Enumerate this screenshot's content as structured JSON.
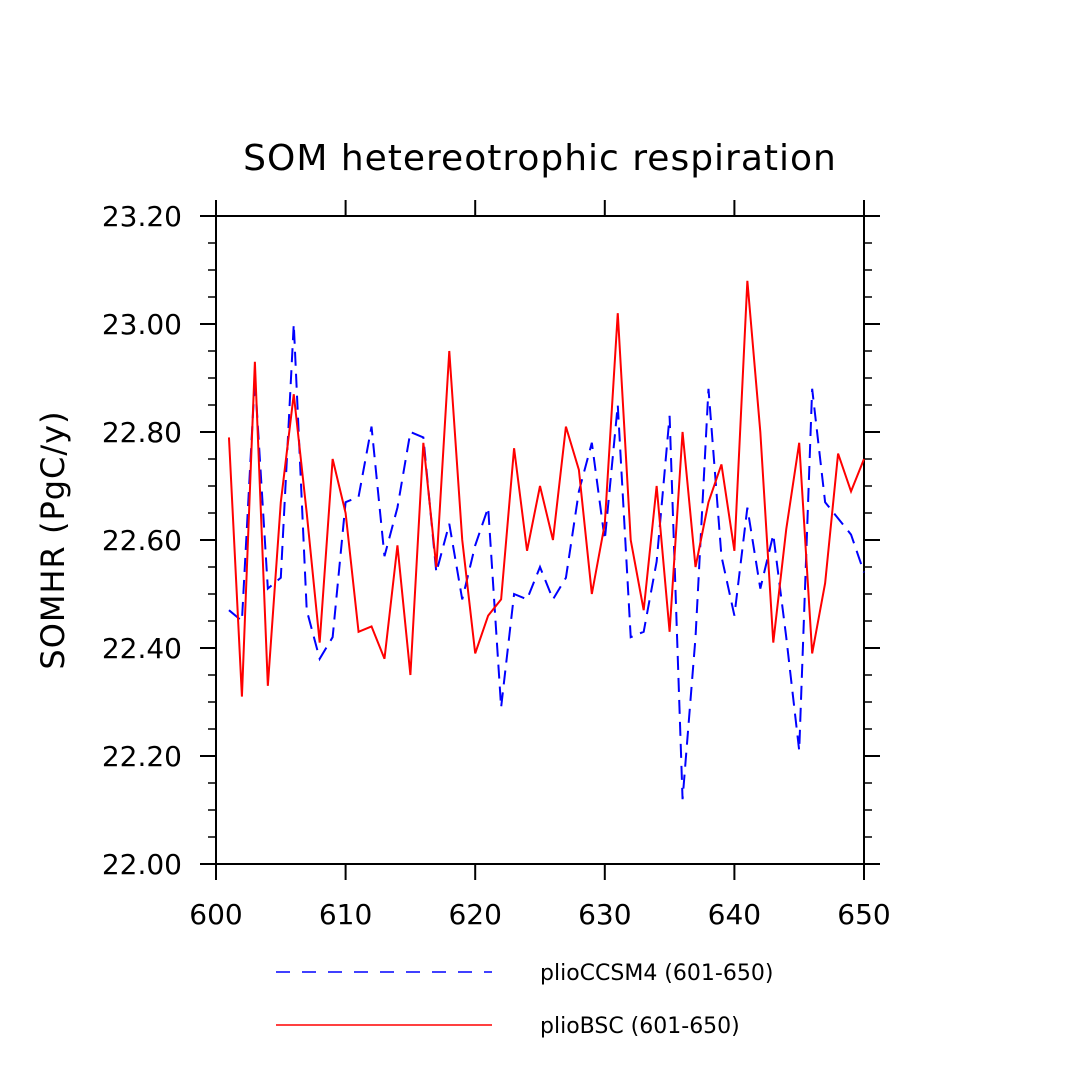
{
  "chart_data": {
    "type": "line",
    "title": "SOM hetereotrophic respiration",
    "xlabel": "",
    "ylabel": "SOMHR  (PgC/y)",
    "xlim": [
      600,
      650
    ],
    "ylim": [
      22.0,
      23.2
    ],
    "x_ticks": [
      600,
      610,
      620,
      630,
      640,
      650
    ],
    "x_tick_labels": [
      "600",
      "610",
      "620",
      "630",
      "640",
      "650"
    ],
    "y_ticks": [
      22.0,
      22.2,
      22.4,
      22.6,
      22.8,
      23.0,
      23.2
    ],
    "y_tick_labels": [
      "22.00",
      "22.20",
      "22.40",
      "22.60",
      "22.80",
      "23.00",
      "23.20"
    ],
    "grid": false,
    "legend_position": "bottom",
    "x": [
      601,
      602,
      603,
      604,
      605,
      606,
      607,
      608,
      609,
      610,
      611,
      612,
      613,
      614,
      615,
      616,
      617,
      618,
      619,
      620,
      621,
      622,
      623,
      624,
      625,
      626,
      627,
      628,
      629,
      630,
      631,
      632,
      633,
      634,
      635,
      636,
      637,
      638,
      639,
      640,
      641,
      642,
      643,
      644,
      645,
      646,
      647,
      648,
      649,
      650
    ],
    "series": [
      {
        "name": "plioCCSM4 (601-650)",
        "color": "#0000ff",
        "style": "dashed",
        "values": [
          22.47,
          22.45,
          22.9,
          22.51,
          22.53,
          23.0,
          22.47,
          22.38,
          22.42,
          22.67,
          22.68,
          22.81,
          22.57,
          22.66,
          22.8,
          22.79,
          22.54,
          22.63,
          22.49,
          22.59,
          22.66,
          22.29,
          22.5,
          22.49,
          22.55,
          22.49,
          22.53,
          22.69,
          22.78,
          22.6,
          22.85,
          22.42,
          22.43,
          22.56,
          22.83,
          22.12,
          22.42,
          22.88,
          22.57,
          22.46,
          22.66,
          22.51,
          22.61,
          22.42,
          22.21,
          22.88,
          22.67,
          22.64,
          22.61,
          22.54
        ]
      },
      {
        "name": "plioBSC (601-650)",
        "color": "#ff0000",
        "style": "solid",
        "values": [
          22.79,
          22.31,
          22.93,
          22.33,
          22.67,
          22.87,
          22.65,
          22.41,
          22.75,
          22.65,
          22.43,
          22.44,
          22.38,
          22.59,
          22.35,
          22.78,
          22.55,
          22.95,
          22.6,
          22.39,
          22.46,
          22.49,
          22.77,
          22.58,
          22.7,
          22.6,
          22.81,
          22.73,
          22.5,
          22.63,
          23.02,
          22.6,
          22.47,
          22.7,
          22.43,
          22.8,
          22.55,
          22.67,
          22.74,
          22.58,
          23.08,
          22.8,
          22.41,
          22.62,
          22.78,
          22.39,
          22.52,
          22.76,
          22.69,
          22.75
        ]
      }
    ]
  }
}
